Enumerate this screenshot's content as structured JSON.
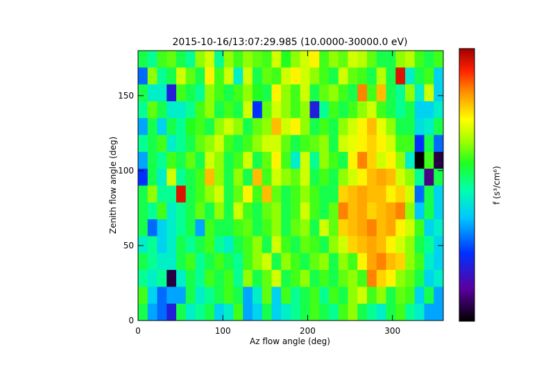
{
  "chart_data": {
    "type": "heatmap",
    "title": "2015-10-16/13:07:29.985 (10.0000-30000.0 eV)",
    "xlabel": "Az flow angle (deg)",
    "ylabel": "Zenith flow angle (deg)",
    "colorbar_label": "f (s³/cm⁶)",
    "xlim": [
      0,
      360
    ],
    "ylim": [
      0,
      180
    ],
    "x_ticks": [
      0,
      100,
      200,
      300
    ],
    "y_ticks": [
      0,
      50,
      100,
      150
    ],
    "n_cols": 32,
    "n_rows": 16,
    "cell_width_deg": 11.25,
    "cell_height_deg": 11.25,
    "value_range": [
      0,
      1
    ],
    "colormap": "rainbow",
    "cells_rows_top_to_bottom": [
      [
        0.55,
        0.5,
        0.6,
        0.62,
        0.55,
        0.5,
        0.65,
        0.7,
        0.5,
        0.65,
        0.6,
        0.65,
        0.62,
        0.6,
        0.7,
        0.58,
        0.65,
        0.7,
        0.75,
        0.6,
        0.65,
        0.62,
        0.7,
        0.68,
        0.62,
        0.55,
        0.55,
        0.65,
        0.68,
        0.6,
        0.55,
        0.6
      ],
      [
        0.3,
        0.65,
        0.5,
        0.55,
        0.7,
        0.62,
        0.55,
        0.75,
        0.6,
        0.7,
        0.45,
        0.7,
        0.55,
        0.62,
        0.6,
        0.7,
        0.75,
        0.7,
        0.65,
        0.6,
        0.55,
        0.7,
        0.62,
        0.6,
        0.55,
        0.68,
        0.55,
        0.95,
        0.45,
        0.55,
        0.6,
        0.4
      ],
      [
        0.55,
        0.45,
        0.45,
        0.2,
        0.6,
        0.55,
        0.5,
        0.65,
        0.6,
        0.55,
        0.6,
        0.65,
        0.58,
        0.55,
        0.75,
        0.65,
        0.6,
        0.7,
        0.55,
        0.62,
        0.65,
        0.6,
        0.55,
        0.85,
        0.6,
        0.8,
        0.55,
        0.5,
        0.65,
        0.45,
        0.7,
        0.4
      ],
      [
        0.5,
        0.62,
        0.55,
        0.45,
        0.45,
        0.5,
        0.6,
        0.65,
        0.55,
        0.6,
        0.55,
        0.7,
        0.25,
        0.62,
        0.7,
        0.65,
        0.6,
        0.65,
        0.2,
        0.5,
        0.6,
        0.55,
        0.6,
        0.65,
        0.7,
        0.6,
        0.55,
        0.5,
        0.55,
        0.4,
        0.4,
        0.45
      ],
      [
        0.35,
        0.55,
        0.4,
        0.55,
        0.5,
        0.58,
        0.6,
        0.55,
        0.65,
        0.7,
        0.65,
        0.55,
        0.62,
        0.65,
        0.8,
        0.7,
        0.75,
        0.65,
        0.55,
        0.6,
        0.55,
        0.65,
        0.7,
        0.75,
        0.8,
        0.72,
        0.65,
        0.55,
        0.55,
        0.42,
        0.45,
        0.55
      ],
      [
        0.5,
        0.55,
        0.6,
        0.45,
        0.5,
        0.55,
        0.62,
        0.65,
        0.7,
        0.6,
        0.55,
        0.6,
        0.65,
        0.7,
        0.7,
        0.62,
        0.55,
        0.6,
        0.62,
        0.65,
        0.55,
        0.7,
        0.72,
        0.75,
        0.78,
        0.75,
        0.7,
        0.6,
        0.6,
        0.25,
        0.55,
        0.3
      ],
      [
        0.35,
        0.55,
        0.5,
        0.6,
        0.55,
        0.62,
        0.55,
        0.7,
        0.65,
        0.55,
        0.6,
        0.7,
        0.55,
        0.62,
        0.75,
        0.6,
        0.45,
        0.7,
        0.5,
        0.65,
        0.6,
        0.55,
        0.75,
        0.85,
        0.78,
        0.7,
        0.75,
        0.65,
        0.45,
        0.0,
        0.6,
        0.05
      ],
      [
        0.25,
        0.55,
        0.45,
        0.7,
        0.5,
        0.55,
        0.6,
        0.8,
        0.65,
        0.55,
        0.65,
        0.55,
        0.8,
        0.6,
        0.7,
        0.65,
        0.62,
        0.7,
        0.55,
        0.6,
        0.55,
        0.65,
        0.7,
        0.75,
        0.8,
        0.82,
        0.8,
        0.7,
        0.65,
        0.5,
        0.1,
        0.55
      ],
      [
        0.55,
        0.65,
        0.5,
        0.5,
        0.95,
        0.55,
        0.6,
        0.65,
        0.7,
        0.55,
        0.62,
        0.75,
        0.6,
        0.8,
        0.62,
        0.55,
        0.6,
        0.65,
        0.6,
        0.55,
        0.55,
        0.78,
        0.8,
        0.82,
        0.8,
        0.8,
        0.75,
        0.78,
        0.7,
        0.3,
        0.55,
        0.4
      ],
      [
        0.55,
        0.5,
        0.6,
        0.45,
        0.5,
        0.55,
        0.62,
        0.55,
        0.65,
        0.55,
        0.7,
        0.6,
        0.55,
        0.62,
        0.65,
        0.55,
        0.6,
        0.7,
        0.6,
        0.55,
        0.62,
        0.85,
        0.8,
        0.82,
        0.78,
        0.8,
        0.82,
        0.85,
        0.65,
        0.38,
        0.55,
        0.4
      ],
      [
        0.55,
        0.3,
        0.4,
        0.45,
        0.5,
        0.55,
        0.35,
        0.6,
        0.55,
        0.55,
        0.6,
        0.62,
        0.55,
        0.6,
        0.65,
        0.55,
        0.62,
        0.65,
        0.55,
        0.7,
        0.62,
        0.78,
        0.8,
        0.82,
        0.85,
        0.8,
        0.82,
        0.75,
        0.7,
        0.6,
        0.4,
        0.45
      ],
      [
        0.45,
        0.5,
        0.4,
        0.45,
        0.55,
        0.5,
        0.55,
        0.6,
        0.5,
        0.45,
        0.55,
        0.6,
        0.65,
        0.55,
        0.7,
        0.6,
        0.55,
        0.62,
        0.6,
        0.55,
        0.65,
        0.7,
        0.78,
        0.8,
        0.82,
        0.8,
        0.75,
        0.7,
        0.65,
        0.55,
        0.5,
        0.4
      ],
      [
        0.55,
        0.5,
        0.45,
        0.45,
        0.55,
        0.6,
        0.5,
        0.55,
        0.6,
        0.55,
        0.5,
        0.6,
        0.65,
        0.7,
        0.55,
        0.65,
        0.6,
        0.55,
        0.62,
        0.65,
        0.55,
        0.65,
        0.6,
        0.75,
        0.82,
        0.85,
        0.8,
        0.78,
        0.65,
        0.6,
        0.45,
        0.4
      ],
      [
        0.5,
        0.45,
        0.5,
        0.05,
        0.45,
        0.55,
        0.5,
        0.6,
        0.55,
        0.6,
        0.5,
        0.65,
        0.55,
        0.62,
        0.7,
        0.55,
        0.6,
        0.65,
        0.55,
        0.6,
        0.55,
        0.62,
        0.65,
        0.6,
        0.85,
        0.78,
        0.75,
        0.65,
        0.62,
        0.55,
        0.4,
        0.45
      ],
      [
        0.6,
        0.4,
        0.3,
        0.35,
        0.35,
        0.55,
        0.45,
        0.5,
        0.55,
        0.6,
        0.55,
        0.35,
        0.45,
        0.62,
        0.4,
        0.6,
        0.5,
        0.55,
        0.6,
        0.5,
        0.6,
        0.55,
        0.65,
        0.7,
        0.6,
        0.65,
        0.55,
        0.62,
        0.6,
        0.4,
        0.55,
        0.35
      ],
      [
        0.55,
        0.35,
        0.3,
        0.2,
        0.55,
        0.45,
        0.5,
        0.55,
        0.4,
        0.45,
        0.6,
        0.35,
        0.4,
        0.55,
        0.4,
        0.45,
        0.5,
        0.55,
        0.6,
        0.55,
        0.5,
        0.6,
        0.65,
        0.55,
        0.5,
        0.45,
        0.55,
        0.6,
        0.5,
        0.45,
        0.35,
        0.35
      ]
    ]
  }
}
